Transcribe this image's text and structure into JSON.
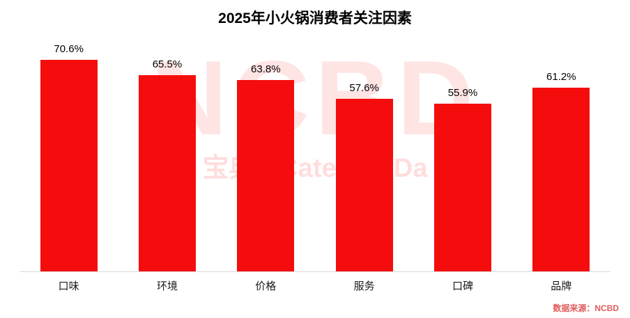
{
  "title": "2025年小火锅消费者关注因素",
  "source": "数据来源：NCBD",
  "watermark": {
    "line1": "NCBD",
    "line2": "宝典 · Catering Da"
  },
  "colors": {
    "bar": "#f50d0d",
    "title": "#000000",
    "source": "#e05c5c",
    "watermark": "#ff0000",
    "baseline": "#d9d9d9"
  },
  "chart_data": {
    "type": "bar",
    "title": "2025年小火锅消费者关注因素",
    "categories": [
      "口味",
      "环境",
      "价格",
      "服务",
      "口碑",
      "品牌"
    ],
    "values": [
      70.6,
      65.5,
      63.8,
      57.6,
      55.9,
      61.2
    ],
    "value_labels": [
      "70.6%",
      "65.5%",
      "63.8%",
      "57.6%",
      "55.9%",
      "61.2%"
    ],
    "xlabel": "",
    "ylabel": "",
    "ylim": [
      0,
      77
    ],
    "grid": false,
    "legend": "none",
    "bar_color": "#f50d0d",
    "source_note": "数据来源：NCBD"
  }
}
